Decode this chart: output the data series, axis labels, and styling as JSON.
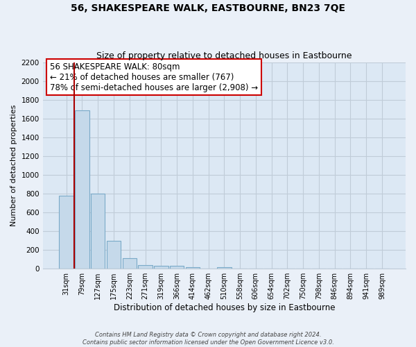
{
  "title": "56, SHAKESPEARE WALK, EASTBOURNE, BN23 7QE",
  "subtitle": "Size of property relative to detached houses in Eastbourne",
  "xlabel": "Distribution of detached houses by size in Eastbourne",
  "ylabel": "Number of detached properties",
  "bar_labels": [
    "31sqm",
    "79sqm",
    "127sqm",
    "175sqm",
    "223sqm",
    "271sqm",
    "319sqm",
    "366sqm",
    "414sqm",
    "462sqm",
    "510sqm",
    "558sqm",
    "606sqm",
    "654sqm",
    "702sqm",
    "750sqm",
    "798sqm",
    "846sqm",
    "894sqm",
    "941sqm",
    "989sqm"
  ],
  "bar_heights": [
    780,
    1690,
    800,
    300,
    115,
    40,
    30,
    30,
    20,
    0,
    20,
    0,
    0,
    0,
    0,
    0,
    0,
    0,
    0,
    0,
    0
  ],
  "bar_color": "#c5d9ea",
  "bar_edge_color": "#7aaac8",
  "vline_color": "#aa0000",
  "ylim": [
    0,
    2200
  ],
  "yticks": [
    0,
    200,
    400,
    600,
    800,
    1000,
    1200,
    1400,
    1600,
    1800,
    2000,
    2200
  ],
  "annotation_title": "56 SHAKESPEARE WALK: 80sqm",
  "annotation_line1": "← 21% of detached houses are smaller (767)",
  "annotation_line2": "78% of semi-detached houses are larger (2,908) →",
  "box_color": "#ffffff",
  "box_edge_color": "#cc0000",
  "footnote1": "Contains HM Land Registry data © Crown copyright and database right 2024.",
  "footnote2": "Contains public sector information licensed under the Open Government Licence v3.0.",
  "background_color": "#eaf0f8",
  "plot_bg_color": "#dce8f4",
  "grid_color": "#c0ccd8"
}
